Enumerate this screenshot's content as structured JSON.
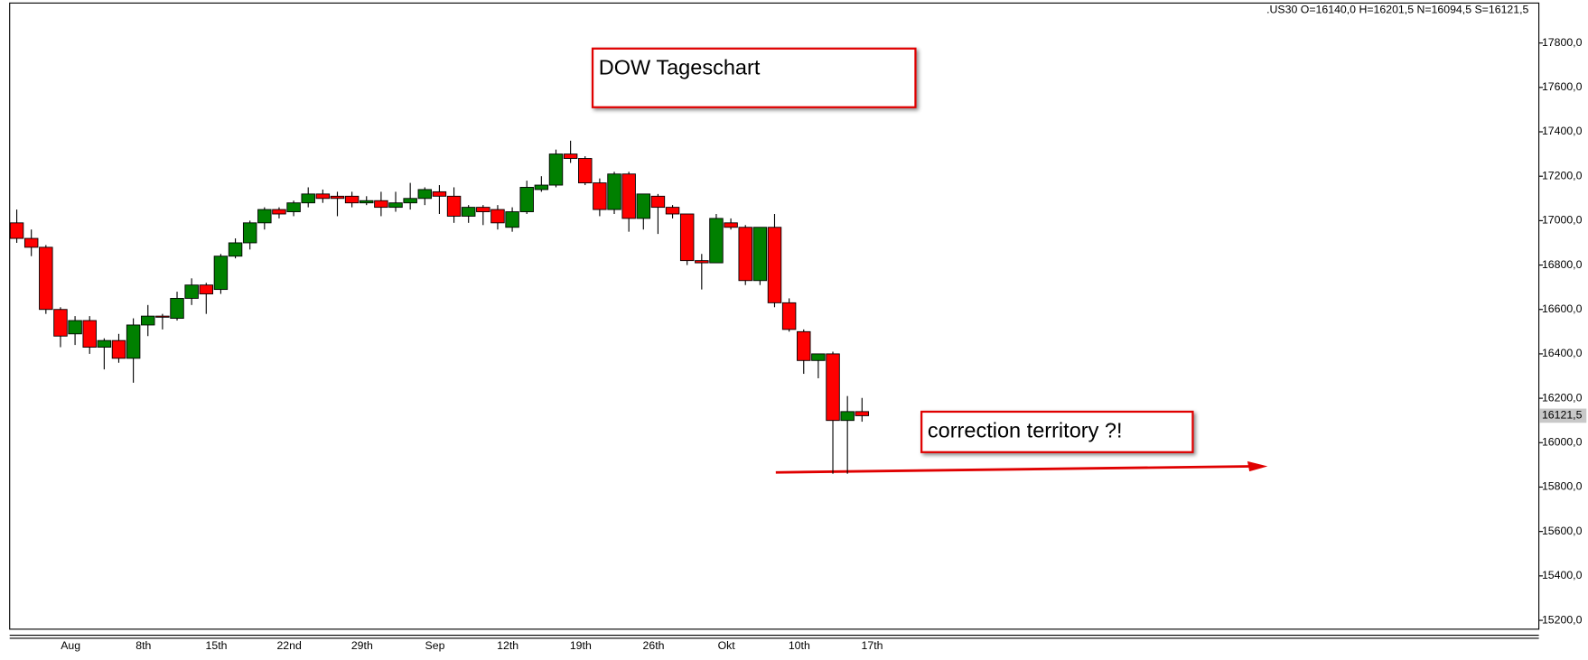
{
  "chart_data": {
    "type": "candlestick",
    "header": ".US30 O=16140,0 H=16201,5 N=16094,5 S=16121,5",
    "title": "DOW Tageschart",
    "annotation": "correction territory ?!",
    "last_price": {
      "value": 16121.5,
      "label": "16121,5"
    },
    "up_color": "#008000",
    "down_color": "#ff0000",
    "annotation_color": "#e00000",
    "categories": [
      null,
      null,
      null,
      "Aug",
      null,
      null,
      null,
      null,
      "8th",
      null,
      null,
      null,
      null,
      "15th",
      null,
      null,
      null,
      null,
      "22nd",
      null,
      null,
      null,
      null,
      "29th",
      null,
      null,
      null,
      null,
      "Sep",
      null,
      null,
      null,
      null,
      "12th",
      null,
      null,
      null,
      null,
      "19th",
      null,
      null,
      null,
      null,
      "26th",
      null,
      null,
      null,
      null,
      "Okt",
      null,
      null,
      null,
      null,
      "10th",
      null,
      null,
      null,
      null,
      "17th"
    ],
    "series": {
      "open": [
        16990,
        16920,
        16880,
        16600,
        16490,
        16550,
        16430,
        16460,
        16380,
        16530,
        16570,
        16560,
        16650,
        16710,
        16690,
        16840,
        16900,
        16990,
        17050,
        17040,
        17080,
        17120,
        17110,
        17110,
        17080,
        17090,
        17060,
        17080,
        17100,
        17130,
        17110,
        17020,
        17060,
        17050,
        16970,
        17040,
        17140,
        17160,
        17300,
        17280,
        17170,
        17050,
        17210,
        17010,
        17110,
        17060,
        17030,
        16820,
        16810,
        16990,
        16970,
        16730,
        16970,
        16630,
        16500,
        16370,
        16400,
        16100,
        16140
      ],
      "high": [
        17050,
        16960,
        16890,
        16610,
        16570,
        16570,
        16470,
        16490,
        16560,
        16620,
        16580,
        16680,
        16740,
        16720,
        16850,
        16920,
        17000,
        17060,
        17060,
        17090,
        17150,
        17140,
        17130,
        17130,
        17110,
        17130,
        17130,
        17170,
        17150,
        17160,
        17150,
        17070,
        17070,
        17070,
        17060,
        17180,
        17200,
        17320,
        17360,
        17290,
        17190,
        17220,
        17220,
        17120,
        17120,
        17070,
        17030,
        16850,
        17030,
        17010,
        16980,
        16970,
        17030,
        16650,
        16510,
        16400,
        16410,
        16210,
        16201.5
      ],
      "low": [
        16900,
        16840,
        16580,
        16430,
        16440,
        16400,
        16330,
        16360,
        16270,
        16480,
        16510,
        16550,
        16620,
        16580,
        16670,
        16830,
        16870,
        16960,
        17010,
        17020,
        17060,
        17080,
        17020,
        17060,
        17070,
        17020,
        17040,
        17050,
        17070,
        17030,
        16990,
        16990,
        16980,
        16960,
        16950,
        17030,
        17130,
        17150,
        17260,
        17160,
        17020,
        17030,
        16950,
        16960,
        16940,
        17010,
        16800,
        16690,
        16810,
        16960,
        16710,
        16710,
        16610,
        16500,
        16310,
        16290,
        15860,
        15860,
        16094.5
      ],
      "close": [
        16920,
        16880,
        16600,
        16480,
        16550,
        16430,
        16460,
        16380,
        16530,
        16570,
        16565,
        16650,
        16710,
        16670,
        16840,
        16900,
        16990,
        17050,
        17030,
        17080,
        17120,
        17100,
        17100,
        17080,
        17090,
        17060,
        17080,
        17100,
        17140,
        17110,
        17020,
        17060,
        17040,
        16990,
        17040,
        17150,
        17160,
        17300,
        17280,
        17170,
        17050,
        17210,
        17010,
        17120,
        17060,
        17030,
        16820,
        16810,
        17010,
        16970,
        16730,
        16970,
        16630,
        16510,
        16370,
        16400,
        16100,
        16140,
        16121.5
      ]
    },
    "ylim": [
      15160,
      17980
    ],
    "yticks": [
      {
        "value": 15200,
        "label": "15200,0"
      },
      {
        "value": 15400,
        "label": "15400,0"
      },
      {
        "value": 15600,
        "label": "15600,0"
      },
      {
        "value": 15800,
        "label": "15800,0"
      },
      {
        "value": 16000,
        "label": "16000,0"
      },
      {
        "value": 16200,
        "label": "16200,0"
      },
      {
        "value": 16400,
        "label": "16400,0"
      },
      {
        "value": 16600,
        "label": "16600,0"
      },
      {
        "value": 16800,
        "label": "16800,0"
      },
      {
        "value": 17000,
        "label": "17000,0"
      },
      {
        "value": 17200,
        "label": "17200,0"
      },
      {
        "value": 17400,
        "label": "17400,0"
      },
      {
        "value": 17600,
        "label": "17600,0"
      },
      {
        "value": 17800,
        "label": "17800,0"
      }
    ]
  }
}
